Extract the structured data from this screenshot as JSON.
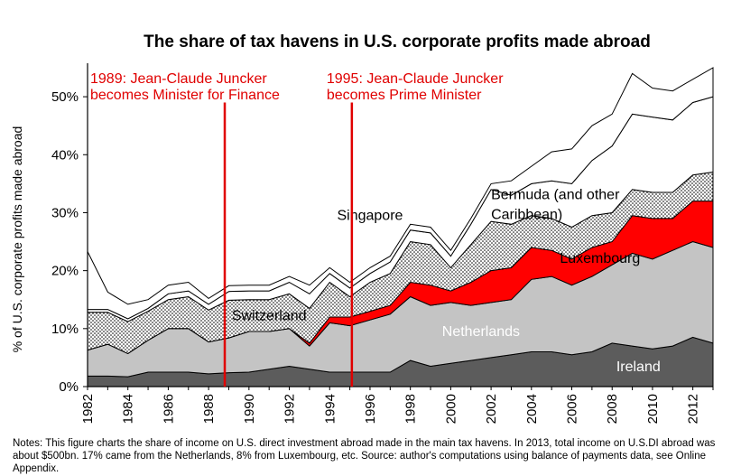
{
  "chart_data": {
    "type": "area",
    "title": "The share of tax havens in U.S. corporate profits made abroad",
    "ylabel": "% of U.S. corporate profits made abroad",
    "xlabel": "",
    "x": [
      1982,
      1983,
      1984,
      1985,
      1986,
      1987,
      1988,
      1989,
      1990,
      1991,
      1992,
      1993,
      1994,
      1995,
      1996,
      1997,
      1998,
      1999,
      2000,
      2001,
      2002,
      2003,
      2004,
      2005,
      2006,
      2007,
      2008,
      2009,
      2010,
      2011,
      2012,
      2013
    ],
    "xlim": [
      1982,
      2013
    ],
    "ylim": [
      0,
      55
    ],
    "x_ticks": [
      "1982",
      "1984",
      "1986",
      "1988",
      "1990",
      "1992",
      "1994",
      "1996",
      "1998",
      "2000",
      "2002",
      "2004",
      "2006",
      "2008",
      "2010",
      "2012"
    ],
    "y_ticks": [
      "0%",
      "10%",
      "20%",
      "30%",
      "40%",
      "50%"
    ],
    "grid": false,
    "series": [
      {
        "name": "Ireland",
        "color": "#5c5c5c",
        "values": [
          1.8,
          1.8,
          1.7,
          2.5,
          2.5,
          2.5,
          2.2,
          2.4,
          2.5,
          3.0,
          3.5,
          3.0,
          2.5,
          2.5,
          2.5,
          2.5,
          4.5,
          3.5,
          4.0,
          4.5,
          5.0,
          5.5,
          6.0,
          6.0,
          5.5,
          6.0,
          7.5,
          7.0,
          6.5,
          7.0,
          8.5,
          7.5
        ]
      },
      {
        "name": "Netherlands",
        "color": "#c4c4c4",
        "values": [
          4.5,
          5.5,
          4.0,
          5.5,
          7.5,
          7.5,
          5.5,
          6.0,
          7.0,
          6.5,
          6.5,
          4.0,
          8.5,
          8.0,
          9.0,
          10.0,
          11.0,
          10.5,
          10.5,
          9.5,
          9.5,
          9.5,
          12.5,
          13.0,
          12.0,
          13.0,
          13.5,
          16.0,
          15.5,
          16.5,
          16.5,
          16.5
        ]
      },
      {
        "name": "Luxembourg",
        "color": "#ff0000",
        "values": [
          0,
          0,
          0,
          0,
          0,
          0,
          0,
          0,
          0,
          0,
          0,
          0.5,
          1.0,
          1.5,
          1.5,
          1.5,
          2.5,
          3.5,
          2.0,
          4.0,
          5.5,
          5.5,
          5.5,
          4.5,
          4.5,
          5.0,
          4.0,
          6.5,
          7.0,
          5.5,
          7.0,
          8.0
        ]
      },
      {
        "name": "Switzerland",
        "color": "#dddddd",
        "values": [
          6.5,
          5.5,
          5.5,
          5.0,
          5.0,
          5.5,
          5.5,
          6.5,
          5.5,
          5.5,
          6.0,
          6.0,
          6.0,
          3.5,
          5.0,
          5.5,
          7.0,
          7.0,
          4.0,
          6.5,
          8.5,
          7.5,
          5.5,
          5.5,
          5.5,
          5.5,
          5.0,
          4.5,
          4.5,
          4.5,
          4.5,
          5.0
        ]
      },
      {
        "name": "Bermuda (and other Caribbean)",
        "color": "#ffffff",
        "values": [
          0.5,
          0.5,
          0.5,
          0.5,
          1.0,
          1.0,
          1.0,
          1.5,
          1.5,
          1.5,
          2.0,
          2.5,
          1.5,
          1.5,
          1.5,
          2.0,
          2.0,
          2.0,
          2.0,
          3.5,
          5.5,
          5.0,
          5.5,
          6.5,
          7.5,
          9.5,
          11.5,
          13.0,
          13.0,
          12.5,
          12.5,
          13.0
        ]
      },
      {
        "name": "Singapore",
        "color": "#ffffff",
        "values": [
          10.0,
          3.0,
          2.5,
          1.5,
          1.5,
          1.5,
          1.0,
          1.0,
          1.0,
          1.0,
          1.0,
          1.5,
          1.0,
          1.0,
          1.0,
          1.0,
          1.0,
          1.0,
          1.0,
          1.0,
          1.0,
          2.5,
          3.0,
          5.0,
          6.0,
          6.0,
          5.5,
          7.0,
          5.0,
          5.0,
          4.0,
          5.0
        ]
      }
    ],
    "series_label_color": {
      "Ireland": "#ffffff",
      "Netherlands": "#ffffff",
      "Luxembourg": "#000000",
      "Switzerland": "#000000",
      "Bermuda (and other Caribbean)": "#000000",
      "Singapore": "#000000"
    },
    "annotations": [
      {
        "x": 1988.8,
        "label_lines": [
          "1989: Jean-Claude Juncker",
          "becomes Minister for Finance"
        ],
        "color": "#e00000"
      },
      {
        "x": 1995.1,
        "label_lines": [
          "1995: Jean-Claude Juncker",
          "becomes Prime Minister"
        ],
        "color": "#e00000"
      }
    ]
  },
  "notes": "Notes: This figure charts the share of income on U.S. direct investment abroad made in the main tax havens. In 2013, total income on U.S.DI abroad was about $500bn. 17% came from the Netherlands, 8% from Luxembourg, etc. Source: author's computations using balance of payments data, see Online Appendix."
}
